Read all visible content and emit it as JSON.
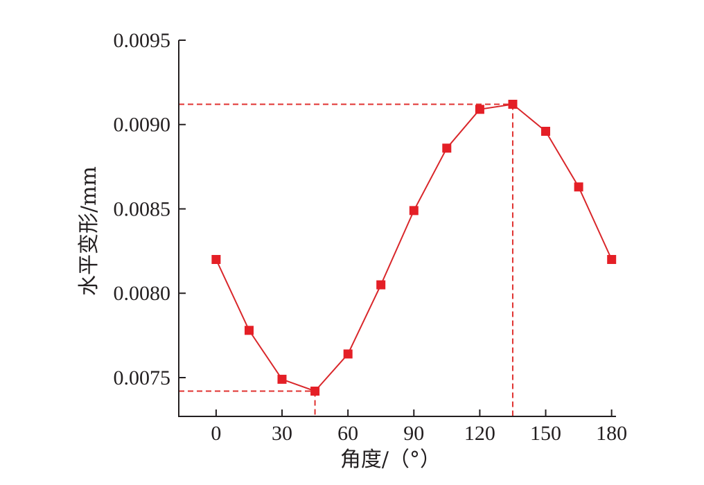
{
  "chart_data": {
    "type": "line",
    "xlabel": "角度/（°）",
    "ylabel": "水平变形/mm",
    "xlim": [
      -17,
      182
    ],
    "ylim": [
      0.00727,
      0.0095
    ],
    "x_ticks": [
      0,
      30,
      60,
      90,
      120,
      150,
      180
    ],
    "x_tick_labels": [
      "0",
      "30",
      "60",
      "90",
      "120",
      "150",
      "180"
    ],
    "y_ticks": [
      0.0075,
      0.008,
      0.0085,
      0.009,
      0.0095
    ],
    "y_tick_labels": [
      "0.0075",
      "0.0080",
      "0.0085",
      "0.0090",
      "0.0095"
    ],
    "grid": false,
    "series": [
      {
        "x": [
          0,
          15,
          30,
          45,
          60,
          75,
          90,
          105,
          120,
          135,
          150,
          165,
          180
        ],
        "y": [
          0.0082,
          0.00778,
          0.00749,
          0.00742,
          0.00764,
          0.00805,
          0.00849,
          0.00886,
          0.00909,
          0.00912,
          0.00896,
          0.00863,
          0.0082
        ],
        "color": "#e41f26",
        "marker": "square"
      }
    ],
    "reference_lines": [
      {
        "x": 45,
        "y": 0.00742
      },
      {
        "x": 135,
        "y": 0.00912
      }
    ]
  }
}
